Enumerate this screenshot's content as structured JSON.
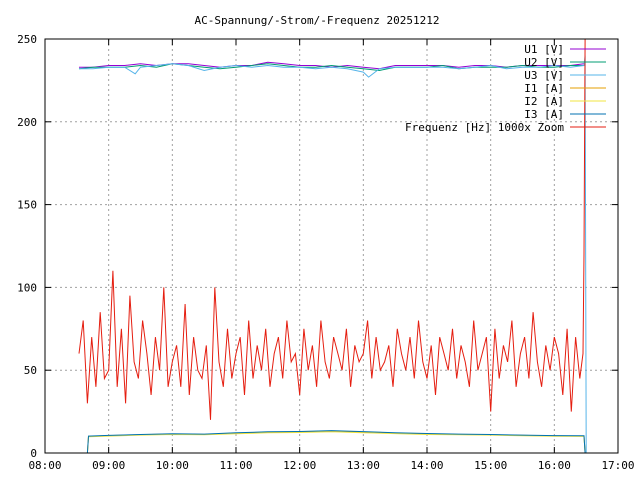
{
  "chart_data": {
    "type": "line",
    "title": "AC-Spannung/-Strom/-Frequenz 20251212",
    "xlabel": "",
    "ylabel": "",
    "x_range": [
      "08:00",
      "17:00"
    ],
    "ylim": [
      0,
      250
    ],
    "x_ticks": [
      "08:00",
      "09:00",
      "10:00",
      "11:00",
      "12:00",
      "13:00",
      "14:00",
      "15:00",
      "16:00",
      "17:00"
    ],
    "y_ticks": [
      "0",
      "50",
      "100",
      "150",
      "200",
      "250"
    ],
    "grid": true,
    "legend_position": "top-right",
    "series": [
      {
        "name": "U1 [V]",
        "color": "#9400d3",
        "x": [
          "08:32",
          "08:45",
          "09:00",
          "09:15",
          "09:30",
          "09:45",
          "10:00",
          "10:15",
          "10:30",
          "10:45",
          "11:00",
          "11:15",
          "11:30",
          "11:45",
          "12:00",
          "12:15",
          "12:30",
          "12:45",
          "13:00",
          "13:15",
          "13:30",
          "13:45",
          "14:00",
          "14:15",
          "14:30",
          "14:45",
          "15:00",
          "15:15",
          "15:30",
          "15:45",
          "16:00",
          "16:15",
          "16:28"
        ],
        "values": [
          233,
          233,
          234,
          234,
          235,
          234,
          235,
          235,
          234,
          233,
          234,
          234,
          236,
          235,
          234,
          234,
          233,
          234,
          233,
          232,
          234,
          234,
          234,
          234,
          233,
          234,
          234,
          233,
          234,
          234,
          234,
          234,
          235
        ]
      },
      {
        "name": "U2 [V]",
        "color": "#009e73",
        "x": [
          "08:32",
          "08:45",
          "09:00",
          "09:15",
          "09:30",
          "09:45",
          "10:00",
          "10:15",
          "10:30",
          "10:45",
          "11:00",
          "11:15",
          "11:30",
          "11:45",
          "12:00",
          "12:15",
          "12:30",
          "12:45",
          "13:00",
          "13:15",
          "13:30",
          "13:45",
          "14:00",
          "14:15",
          "14:30",
          "14:45",
          "15:00",
          "15:15",
          "15:30",
          "15:45",
          "16:00",
          "16:15",
          "16:28"
        ],
        "values": [
          232,
          233,
          233,
          233,
          234,
          233,
          235,
          234,
          233,
          232,
          233,
          234,
          235,
          234,
          233,
          233,
          234,
          233,
          232,
          231,
          233,
          233,
          233,
          234,
          232,
          233,
          233,
          233,
          234,
          233,
          233,
          234,
          234
        ]
      },
      {
        "name": "U3 [V]",
        "color": "#56b4e9",
        "x": [
          "08:32",
          "08:45",
          "09:00",
          "09:15",
          "09:25",
          "09:30",
          "09:45",
          "10:00",
          "10:15",
          "10:30",
          "10:45",
          "11:00",
          "11:15",
          "11:30",
          "11:45",
          "12:00",
          "12:15",
          "12:30",
          "12:45",
          "13:00",
          "13:05",
          "13:15",
          "13:30",
          "13:45",
          "14:00",
          "14:15",
          "14:30",
          "14:45",
          "15:00",
          "15:15",
          "15:30",
          "15:45",
          "16:00",
          "16:15",
          "16:28",
          "16:29",
          "16:30"
        ],
        "values": [
          232,
          232,
          233,
          233,
          229,
          233,
          234,
          235,
          234,
          231,
          233,
          234,
          233,
          234,
          233,
          233,
          232,
          233,
          232,
          230,
          227,
          232,
          233,
          233,
          233,
          233,
          232,
          233,
          234,
          232,
          233,
          233,
          234,
          233,
          234,
          240,
          0
        ]
      },
      {
        "name": "I1 [A]",
        "color": "#e69f00",
        "x": [
          "08:40",
          "08:41",
          "09:00",
          "09:30",
          "10:00",
          "10:30",
          "11:00",
          "11:30",
          "12:00",
          "12:30",
          "13:00",
          "13:30",
          "14:00",
          "14:30",
          "15:00",
          "15:30",
          "16:00",
          "16:28",
          "16:29"
        ],
        "values": [
          0,
          10,
          10.5,
          11,
          11.5,
          11.2,
          12,
          12.5,
          12.8,
          13.2,
          12.6,
          12,
          11.5,
          11.2,
          11,
          10.6,
          10.3,
          10.2,
          0
        ]
      },
      {
        "name": "I2 [A]",
        "color": "#f0e442",
        "x": [
          "08:40",
          "08:41",
          "09:00",
          "09:30",
          "10:00",
          "10:30",
          "11:00",
          "11:30",
          "12:00",
          "12:30",
          "13:00",
          "13:30",
          "14:00",
          "14:30",
          "15:00",
          "15:30",
          "16:00",
          "16:28",
          "16:29"
        ],
        "values": [
          0,
          9.8,
          10.2,
          10.8,
          11.2,
          11,
          11.6,
          12.2,
          12.4,
          12.8,
          12.2,
          11.7,
          11.2,
          11,
          10.8,
          10.4,
          10.1,
          10,
          0
        ]
      },
      {
        "name": "I3 [A]",
        "color": "#0072b2",
        "x": [
          "08:40",
          "08:41",
          "09:00",
          "09:30",
          "10:00",
          "10:30",
          "11:00",
          "11:30",
          "12:00",
          "12:30",
          "13:00",
          "13:30",
          "14:00",
          "14:30",
          "15:00",
          "15:30",
          "16:00",
          "16:28",
          "16:29"
        ],
        "values": [
          0,
          10.2,
          10.6,
          11.2,
          11.6,
          11.4,
          12.2,
          12.8,
          13,
          13.5,
          12.9,
          12.2,
          11.8,
          11.4,
          11.2,
          10.8,
          10.5,
          10.4,
          0
        ]
      },
      {
        "name": "Frequenz [Hz] 1000x Zoom",
        "color": "#e51e10",
        "x": [
          "08:32",
          "08:36",
          "08:40",
          "08:44",
          "08:48",
          "08:52",
          "08:56",
          "09:00",
          "09:04",
          "09:08",
          "09:12",
          "09:16",
          "09:20",
          "09:24",
          "09:28",
          "09:32",
          "09:36",
          "09:40",
          "09:44",
          "09:48",
          "09:52",
          "09:56",
          "10:00",
          "10:04",
          "10:08",
          "10:12",
          "10:16",
          "10:20",
          "10:24",
          "10:28",
          "10:32",
          "10:36",
          "10:40",
          "10:44",
          "10:48",
          "10:52",
          "10:56",
          "11:00",
          "11:04",
          "11:08",
          "11:12",
          "11:16",
          "11:20",
          "11:24",
          "11:28",
          "11:32",
          "11:36",
          "11:40",
          "11:44",
          "11:48",
          "11:52",
          "11:56",
          "12:00",
          "12:04",
          "12:08",
          "12:12",
          "12:16",
          "12:20",
          "12:24",
          "12:28",
          "12:32",
          "12:36",
          "12:40",
          "12:44",
          "12:48",
          "12:52",
          "12:56",
          "13:00",
          "13:04",
          "13:08",
          "13:12",
          "13:16",
          "13:20",
          "13:24",
          "13:28",
          "13:32",
          "13:36",
          "13:40",
          "13:44",
          "13:48",
          "13:52",
          "13:56",
          "14:00",
          "14:04",
          "14:08",
          "14:12",
          "14:16",
          "14:20",
          "14:24",
          "14:28",
          "14:32",
          "14:36",
          "14:40",
          "14:44",
          "14:48",
          "14:52",
          "14:56",
          "15:00",
          "15:04",
          "15:08",
          "15:12",
          "15:16",
          "15:20",
          "15:24",
          "15:28",
          "15:32",
          "15:36",
          "15:40",
          "15:44",
          "15:48",
          "15:52",
          "15:56",
          "16:00",
          "16:04",
          "16:08",
          "16:12",
          "16:16",
          "16:20",
          "16:24",
          "16:27",
          "16:28",
          "16:29"
        ],
        "values": [
          60,
          80,
          30,
          70,
          40,
          85,
          45,
          50,
          110,
          40,
          75,
          30,
          95,
          55,
          45,
          80,
          60,
          35,
          70,
          50,
          100,
          40,
          55,
          65,
          40,
          90,
          35,
          70,
          50,
          45,
          65,
          20,
          100,
          55,
          40,
          75,
          45,
          60,
          70,
          35,
          80,
          45,
          65,
          50,
          75,
          40,
          60,
          70,
          45,
          80,
          55,
          60,
          35,
          75,
          50,
          65,
          40,
          80,
          55,
          45,
          70,
          60,
          50,
          75,
          40,
          65,
          55,
          60,
          80,
          45,
          70,
          50,
          55,
          65,
          40,
          75,
          60,
          50,
          70,
          45,
          80,
          55,
          45,
          65,
          35,
          70,
          60,
          50,
          75,
          45,
          65,
          55,
          40,
          80,
          50,
          60,
          70,
          25,
          75,
          45,
          65,
          55,
          80,
          40,
          60,
          70,
          45,
          85,
          55,
          40,
          65,
          50,
          70,
          60,
          35,
          75,
          25,
          70,
          45,
          60,
          120,
          250
        ]
      }
    ]
  }
}
